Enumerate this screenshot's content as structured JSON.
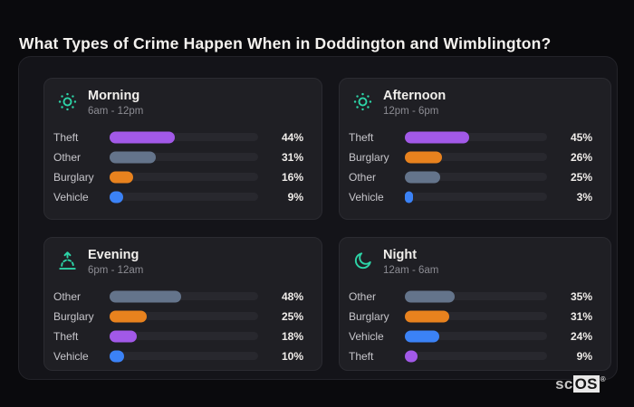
{
  "title": "What Types of Crime Happen When in Doddington and Wimblington?",
  "colors": {
    "accent": "#2dd4a7",
    "theft": "#a259e8",
    "other": "#64748b",
    "burglary": "#e8821e",
    "vehicle": "#3b82f6"
  },
  "panels": [
    {
      "icon": "sun-icon",
      "title": "Morning",
      "time": "6am - 12pm",
      "rows": [
        {
          "label": "Theft",
          "value": 44,
          "display": "44%",
          "color": "theft"
        },
        {
          "label": "Other",
          "value": 31,
          "display": "31%",
          "color": "other"
        },
        {
          "label": "Burglary",
          "value": 16,
          "display": "16%",
          "color": "burglary"
        },
        {
          "label": "Vehicle",
          "value": 9,
          "display": "9%",
          "color": "vehicle"
        }
      ]
    },
    {
      "icon": "sun-icon",
      "title": "Afternoon",
      "time": "12pm - 6pm",
      "rows": [
        {
          "label": "Theft",
          "value": 45,
          "display": "45%",
          "color": "theft"
        },
        {
          "label": "Burglary",
          "value": 26,
          "display": "26%",
          "color": "burglary"
        },
        {
          "label": "Other",
          "value": 25,
          "display": "25%",
          "color": "other"
        },
        {
          "label": "Vehicle",
          "value": 3,
          "display": "3%",
          "color": "vehicle"
        }
      ]
    },
    {
      "icon": "sunrise-icon",
      "title": "Evening",
      "time": "6pm - 12am",
      "rows": [
        {
          "label": "Other",
          "value": 48,
          "display": "48%",
          "color": "other"
        },
        {
          "label": "Burglary",
          "value": 25,
          "display": "25%",
          "color": "burglary"
        },
        {
          "label": "Theft",
          "value": 18,
          "display": "18%",
          "color": "theft"
        },
        {
          "label": "Vehicle",
          "value": 10,
          "display": "10%",
          "color": "vehicle"
        }
      ]
    },
    {
      "icon": "moon-icon",
      "title": "Night",
      "time": "12am - 6am",
      "rows": [
        {
          "label": "Other",
          "value": 35,
          "display": "35%",
          "color": "other"
        },
        {
          "label": "Burglary",
          "value": 31,
          "display": "31%",
          "color": "burglary"
        },
        {
          "label": "Vehicle",
          "value": 24,
          "display": "24%",
          "color": "vehicle"
        },
        {
          "label": "Theft",
          "value": 9,
          "display": "9%",
          "color": "theft"
        }
      ]
    }
  ],
  "watermark": {
    "prefix": "sc",
    "suffix": "OS",
    "registered": "®"
  },
  "chart_data": [
    {
      "type": "bar",
      "orientation": "horizontal",
      "title": "Morning",
      "subtitle": "6am - 12pm",
      "categories": [
        "Theft",
        "Other",
        "Burglary",
        "Vehicle"
      ],
      "values": [
        44,
        31,
        16,
        9
      ],
      "unit": "%",
      "xlim": [
        0,
        100
      ],
      "grid": false,
      "legend": "none"
    },
    {
      "type": "bar",
      "orientation": "horizontal",
      "title": "Afternoon",
      "subtitle": "12pm - 6pm",
      "categories": [
        "Theft",
        "Burglary",
        "Other",
        "Vehicle"
      ],
      "values": [
        45,
        26,
        25,
        3
      ],
      "unit": "%",
      "xlim": [
        0,
        100
      ],
      "grid": false,
      "legend": "none"
    },
    {
      "type": "bar",
      "orientation": "horizontal",
      "title": "Evening",
      "subtitle": "6pm - 12am",
      "categories": [
        "Other",
        "Burglary",
        "Theft",
        "Vehicle"
      ],
      "values": [
        48,
        25,
        18,
        10
      ],
      "unit": "%",
      "xlim": [
        0,
        100
      ],
      "grid": false,
      "legend": "none"
    },
    {
      "type": "bar",
      "orientation": "horizontal",
      "title": "Night",
      "subtitle": "12am - 6am",
      "categories": [
        "Other",
        "Burglary",
        "Vehicle",
        "Theft"
      ],
      "values": [
        35,
        31,
        24,
        9
      ],
      "unit": "%",
      "xlim": [
        0,
        100
      ],
      "grid": false,
      "legend": "none"
    }
  ]
}
